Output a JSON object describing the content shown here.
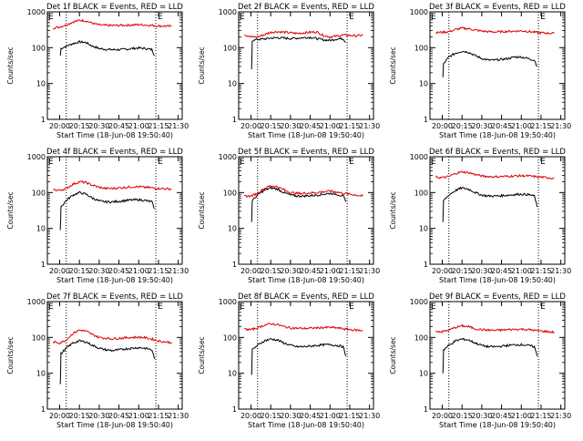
{
  "colors": {
    "events": "#000000",
    "lld": "#e00000",
    "frame": "#000000",
    "background": "#ffffff"
  },
  "chart_data": [
    {
      "type": "line",
      "title": "Det 1f BLACK = Events, RED = LLD",
      "xlabel": "Start Time (18-Jun-08 19:50:40)",
      "ylabel": "Counts/sec",
      "yscale": "log",
      "ylim": [
        1,
        1000
      ],
      "y_ticks": [
        "1",
        "10",
        "100",
        "1000"
      ],
      "x_ticks": [
        "20:00",
        "20:15",
        "20:30",
        "20:45",
        "21:00",
        "21:15",
        "21:30"
      ],
      "markers": [
        "E",
        "E"
      ],
      "series": [
        {
          "name": "Events",
          "color": "#000000",
          "x": [
            "20:00:30",
            "20:01:00",
            "20:05",
            "20:10",
            "20:15",
            "20:20",
            "20:25",
            "20:30",
            "20:35",
            "20:40",
            "20:45",
            "20:50",
            "20:55",
            "21:00",
            "21:05",
            "21:10",
            "21:12"
          ],
          "y": [
            60,
            95,
            110,
            130,
            145,
            140,
            110,
            95,
            90,
            88,
            88,
            90,
            95,
            98,
            95,
            88,
            60
          ]
        },
        {
          "name": "LLD",
          "color": "#e00000",
          "x": [
            "19:55",
            "20:00",
            "20:05",
            "20:10",
            "20:15",
            "20:20",
            "20:25",
            "20:30",
            "20:35",
            "20:40",
            "20:45",
            "20:50",
            "20:55",
            "21:00",
            "21:05",
            "21:10",
            "21:15",
            "21:20",
            "21:25"
          ],
          "y": [
            350,
            380,
            430,
            520,
            580,
            560,
            480,
            430,
            420,
            415,
            420,
            425,
            430,
            440,
            430,
            420,
            405,
            400,
            395
          ]
        }
      ]
    },
    {
      "type": "line",
      "title": "Det 2f BLACK = Events, RED = LLD",
      "xlabel": "Start Time (18-Jun-08 19:50:40)",
      "ylabel": "Counts/sec",
      "yscale": "log",
      "ylim": [
        1,
        1000
      ],
      "y_ticks": [
        "1",
        "10",
        "100",
        "1000"
      ],
      "x_ticks": [
        "20:00",
        "20:15",
        "20:30",
        "20:45",
        "21:00",
        "21:15",
        "21:30"
      ],
      "markers": [
        "E",
        "E"
      ],
      "series": [
        {
          "name": "Events",
          "color": "#000000",
          "x": [
            "20:00:30",
            "20:01:00",
            "20:05",
            "20:10",
            "20:15",
            "20:20",
            "20:25",
            "20:30",
            "20:35",
            "20:40",
            "20:45",
            "20:50",
            "20:55",
            "21:00",
            "21:05",
            "21:10",
            "21:12"
          ],
          "y": [
            25,
            160,
            170,
            175,
            185,
            190,
            185,
            180,
            185,
            190,
            195,
            180,
            165,
            160,
            175,
            180,
            140
          ]
        },
        {
          "name": "LLD",
          "color": "#e00000",
          "x": [
            "19:55",
            "20:00",
            "20:05",
            "20:10",
            "20:15",
            "20:20",
            "20:25",
            "20:30",
            "20:35",
            "20:40",
            "20:45",
            "20:50",
            "20:55",
            "21:00",
            "21:05",
            "21:10",
            "21:15",
            "21:20",
            "21:25"
          ],
          "y": [
            230,
            200,
            200,
            230,
            270,
            280,
            270,
            260,
            250,
            260,
            270,
            275,
            220,
            200,
            210,
            225,
            220,
            215,
            225
          ]
        }
      ]
    },
    {
      "type": "line",
      "title": "Det 3f BLACK = Events, RED = LLD",
      "xlabel": "Start Time (18-Jun-08 19:50:40)",
      "ylabel": "Counts/sec",
      "yscale": "log",
      "ylim": [
        1,
        1000
      ],
      "y_ticks": [
        "1",
        "10",
        "100",
        "1000"
      ],
      "x_ticks": [
        "20:00",
        "20:15",
        "20:30",
        "20:45",
        "21:00",
        "21:15",
        "21:30"
      ],
      "markers": [
        "E",
        "E"
      ],
      "series": [
        {
          "name": "Events",
          "color": "#000000",
          "x": [
            "20:00:30",
            "20:01:00",
            "20:05",
            "20:10",
            "20:15",
            "20:20",
            "20:25",
            "20:30",
            "20:35",
            "20:40",
            "20:45",
            "20:50",
            "20:55",
            "21:00",
            "21:05",
            "21:10",
            "21:12"
          ],
          "y": [
            15,
            35,
            55,
            70,
            80,
            75,
            60,
            50,
            45,
            45,
            47,
            50,
            55,
            55,
            50,
            45,
            30
          ]
        },
        {
          "name": "LLD",
          "color": "#e00000",
          "x": [
            "19:55",
            "20:00",
            "20:05",
            "20:10",
            "20:15",
            "20:20",
            "20:25",
            "20:30",
            "20:35",
            "20:40",
            "20:45",
            "20:50",
            "20:55",
            "21:00",
            "21:05",
            "21:10",
            "21:15",
            "21:20",
            "21:25"
          ],
          "y": [
            260,
            270,
            280,
            320,
            350,
            340,
            310,
            290,
            280,
            275,
            280,
            285,
            290,
            295,
            285,
            270,
            260,
            255,
            250
          ]
        }
      ]
    },
    {
      "type": "line",
      "title": "Det 4f BLACK = Events, RED = LLD",
      "xlabel": "Start Time (18-Jun-08 19:50:40)",
      "ylabel": "Counts/sec",
      "yscale": "log",
      "ylim": [
        1,
        1000
      ],
      "y_ticks": [
        "1",
        "10",
        "100",
        "1000"
      ],
      "x_ticks": [
        "20:00",
        "20:15",
        "20:30",
        "20:45",
        "21:00",
        "21:15",
        "21:30"
      ],
      "markers": [
        "E",
        "E"
      ],
      "series": [
        {
          "name": "Events",
          "color": "#000000",
          "x": [
            "20:00:30",
            "20:01:00",
            "20:05",
            "20:10",
            "20:15",
            "20:20",
            "20:25",
            "20:30",
            "20:35",
            "20:40",
            "20:45",
            "20:50",
            "20:55",
            "21:00",
            "21:05",
            "21:10",
            "21:12"
          ],
          "y": [
            9,
            40,
            60,
            85,
            100,
            90,
            70,
            58,
            55,
            55,
            57,
            60,
            62,
            63,
            60,
            55,
            35
          ]
        },
        {
          "name": "LLD",
          "color": "#e00000",
          "x": [
            "19:55",
            "20:00",
            "20:05",
            "20:10",
            "20:15",
            "20:20",
            "20:25",
            "20:30",
            "20:35",
            "20:40",
            "20:45",
            "20:50",
            "20:55",
            "21:00",
            "21:05",
            "21:10",
            "21:15",
            "21:20",
            "21:25"
          ],
          "y": [
            120,
            115,
            130,
            170,
            200,
            190,
            160,
            140,
            130,
            130,
            135,
            140,
            145,
            145,
            140,
            135,
            130,
            128,
            125
          ]
        }
      ]
    },
    {
      "type": "line",
      "title": "Det 5f BLACK = Events, RED = LLD",
      "xlabel": "Start Time (18-Jun-08 19:50:40)",
      "ylabel": "Counts/sec",
      "yscale": "log",
      "ylim": [
        1,
        1000
      ],
      "y_ticks": [
        "1",
        "10",
        "100",
        "1000"
      ],
      "x_ticks": [
        "20:00",
        "20:15",
        "20:30",
        "20:45",
        "21:00",
        "21:15",
        "21:30"
      ],
      "markers": [
        "E",
        "E"
      ],
      "series": [
        {
          "name": "Events",
          "color": "#000000",
          "x": [
            "20:00:30",
            "20:01:00",
            "20:05",
            "20:10",
            "20:15",
            "20:20",
            "20:25",
            "20:30",
            "20:35",
            "20:40",
            "20:45",
            "20:50",
            "20:55",
            "21:00",
            "21:05",
            "21:10",
            "21:12"
          ],
          "y": [
            15,
            60,
            85,
            115,
            135,
            125,
            100,
            85,
            80,
            80,
            82,
            85,
            90,
            95,
            90,
            80,
            55
          ]
        },
        {
          "name": "LLD",
          "color": "#e00000",
          "x": [
            "19:55",
            "20:00",
            "20:05",
            "20:10",
            "20:15",
            "20:20",
            "20:25",
            "20:30",
            "20:35",
            "20:40",
            "20:45",
            "20:50",
            "20:55",
            "21:00",
            "21:05",
            "21:10",
            "21:15",
            "21:20",
            "21:25"
          ],
          "y": [
            80,
            80,
            95,
            130,
            155,
            145,
            120,
            100,
            95,
            95,
            98,
            100,
            105,
            110,
            105,
            95,
            90,
            85,
            80
          ]
        }
      ]
    },
    {
      "type": "line",
      "title": "Det 6f BLACK = Events, RED = LLD",
      "xlabel": "Start Time (18-Jun-08 19:50:40)",
      "ylabel": "Counts/sec",
      "yscale": "log",
      "ylim": [
        1,
        1000
      ],
      "y_ticks": [
        "1",
        "10",
        "100",
        "1000"
      ],
      "x_ticks": [
        "20:00",
        "20:15",
        "20:30",
        "20:45",
        "21:00",
        "21:15",
        "21:30"
      ],
      "markers": [
        "E",
        "E"
      ],
      "series": [
        {
          "name": "Events",
          "color": "#000000",
          "x": [
            "20:00:30",
            "20:01:00",
            "20:05",
            "20:10",
            "20:15",
            "20:20",
            "20:25",
            "20:30",
            "20:35",
            "20:40",
            "20:45",
            "20:50",
            "20:55",
            "21:00",
            "21:05",
            "21:10",
            "21:12"
          ],
          "y": [
            15,
            60,
            85,
            115,
            135,
            125,
            100,
            85,
            80,
            80,
            82,
            85,
            88,
            90,
            88,
            80,
            40
          ]
        },
        {
          "name": "LLD",
          "color": "#e00000",
          "x": [
            "19:55",
            "20:00",
            "20:05",
            "20:10",
            "20:15",
            "20:20",
            "20:25",
            "20:30",
            "20:35",
            "20:40",
            "20:45",
            "20:50",
            "20:55",
            "21:00",
            "21:05",
            "21:10",
            "21:15",
            "21:20",
            "21:25"
          ],
          "y": [
            270,
            260,
            280,
            340,
            380,
            360,
            320,
            290,
            280,
            275,
            280,
            285,
            290,
            295,
            290,
            280,
            270,
            260,
            250
          ]
        }
      ]
    },
    {
      "type": "line",
      "title": "Det 7f BLACK = Events, RED = LLD",
      "xlabel": "Start Time (18-Jun-08 19:50:40)",
      "ylabel": "Counts/sec",
      "yscale": "log",
      "ylim": [
        1,
        1000
      ],
      "y_ticks": [
        "1",
        "10",
        "100",
        "1000"
      ],
      "x_ticks": [
        "20:00",
        "20:15",
        "20:30",
        "20:45",
        "21:00",
        "21:15",
        "21:30"
      ],
      "markers": [
        "E",
        "E"
      ],
      "series": [
        {
          "name": "Events",
          "color": "#000000",
          "x": [
            "20:00:30",
            "20:01:00",
            "20:05",
            "20:10",
            "20:15",
            "20:20",
            "20:25",
            "20:30",
            "20:35",
            "20:40",
            "20:45",
            "20:50",
            "20:55",
            "21:00",
            "21:05",
            "21:10",
            "21:12"
          ],
          "y": [
            5,
            35,
            50,
            70,
            80,
            75,
            60,
            50,
            45,
            43,
            45,
            48,
            50,
            52,
            50,
            45,
            25
          ]
        },
        {
          "name": "LLD",
          "color": "#e00000",
          "x": [
            "19:55",
            "20:00",
            "20:05",
            "20:10",
            "20:15",
            "20:20",
            "20:25",
            "20:30",
            "20:35",
            "20:40",
            "20:45",
            "20:50",
            "20:55",
            "21:00",
            "21:05",
            "21:10",
            "21:15",
            "21:20",
            "21:25"
          ],
          "y": [
            75,
            70,
            85,
            130,
            160,
            150,
            120,
            100,
            95,
            92,
            95,
            98,
            100,
            102,
            98,
            90,
            80,
            75,
            72
          ]
        }
      ]
    },
    {
      "type": "line",
      "title": "Det 8f BLACK = Events, RED = LLD",
      "xlabel": "Start Time (18-Jun-08 19:50:40)",
      "ylabel": "Counts/sec",
      "yscale": "log",
      "ylim": [
        1,
        1000
      ],
      "y_ticks": [
        "1",
        "10",
        "100",
        "1000"
      ],
      "x_ticks": [
        "20:00",
        "20:15",
        "20:30",
        "20:45",
        "21:00",
        "21:15",
        "21:30"
      ],
      "markers": [
        "E",
        "E"
      ],
      "series": [
        {
          "name": "Events",
          "color": "#000000",
          "x": [
            "20:00:30",
            "20:01:00",
            "20:05",
            "20:10",
            "20:15",
            "20:20",
            "20:25",
            "20:30",
            "20:35",
            "20:40",
            "20:45",
            "20:50",
            "20:55",
            "21:00",
            "21:05",
            "21:10",
            "21:12"
          ],
          "y": [
            9,
            45,
            60,
            80,
            90,
            85,
            70,
            60,
            55,
            55,
            57,
            60,
            62,
            63,
            60,
            55,
            30
          ]
        },
        {
          "name": "LLD",
          "color": "#e00000",
          "x": [
            "19:55",
            "20:00",
            "20:05",
            "20:10",
            "20:15",
            "20:20",
            "20:25",
            "20:30",
            "20:35",
            "20:40",
            "20:45",
            "20:50",
            "20:55",
            "21:00",
            "21:05",
            "21:10",
            "21:15",
            "21:20",
            "21:25"
          ],
          "y": [
            170,
            165,
            185,
            220,
            240,
            230,
            200,
            185,
            180,
            178,
            180,
            185,
            188,
            190,
            185,
            175,
            165,
            160,
            155
          ]
        }
      ]
    },
    {
      "type": "line",
      "title": "Det 9f BLACK = Events, RED = LLD",
      "xlabel": "Start Time (18-Jun-08 19:50:40)",
      "ylabel": "Counts/sec",
      "yscale": "log",
      "ylim": [
        1,
        1000
      ],
      "y_ticks": [
        "1",
        "10",
        "100",
        "1000"
      ],
      "x_ticks": [
        "20:00",
        "20:15",
        "20:30",
        "20:45",
        "21:00",
        "21:15",
        "21:30"
      ],
      "markers": [
        "E",
        "E"
      ],
      "series": [
        {
          "name": "Events",
          "color": "#000000",
          "x": [
            "20:00:30",
            "20:01:00",
            "20:05",
            "20:10",
            "20:15",
            "20:20",
            "20:25",
            "20:30",
            "20:35",
            "20:40",
            "20:45",
            "20:50",
            "20:55",
            "21:00",
            "21:05",
            "21:10",
            "21:12"
          ],
          "y": [
            10,
            45,
            60,
            80,
            90,
            85,
            70,
            60,
            55,
            55,
            57,
            60,
            62,
            63,
            60,
            55,
            30
          ]
        },
        {
          "name": "LLD",
          "color": "#e00000",
          "x": [
            "19:55",
            "20:00",
            "20:05",
            "20:10",
            "20:15",
            "20:20",
            "20:25",
            "20:30",
            "20:35",
            "20:40",
            "20:45",
            "20:50",
            "20:55",
            "21:00",
            "21:05",
            "21:10",
            "21:15",
            "21:20",
            "21:25"
          ],
          "y": [
            150,
            145,
            160,
            190,
            210,
            200,
            175,
            165,
            160,
            158,
            160,
            165,
            168,
            170,
            165,
            158,
            150,
            145,
            140
          ]
        }
      ]
    }
  ]
}
